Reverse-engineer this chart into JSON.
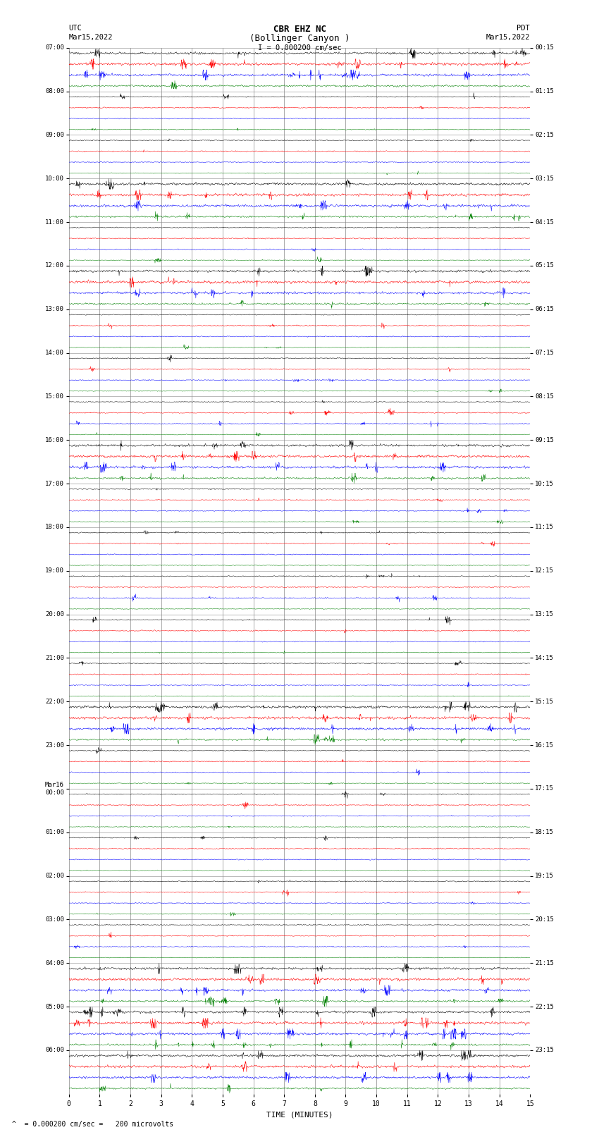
{
  "title_line1": "CBR EHZ NC",
  "title_line2": "(Bollinger Canyon )",
  "scale_label": "I = 0.000200 cm/sec",
  "left_header_line1": "UTC",
  "left_header_line2": "Mar15,2022",
  "right_header_line1": "PDT",
  "right_header_line2": "Mar15,2022",
  "footer_note": "= 0.000200 cm/sec =   200 microvolts",
  "xlabel": "TIME (MINUTES)",
  "bg_color": "#ffffff",
  "trace_colors": [
    "black",
    "red",
    "blue",
    "green"
  ],
  "n_hour_rows": 24,
  "left_labels_utc": [
    "07:00",
    "08:00",
    "09:00",
    "10:00",
    "11:00",
    "12:00",
    "13:00",
    "14:00",
    "15:00",
    "16:00",
    "17:00",
    "18:00",
    "19:00",
    "20:00",
    "21:00",
    "22:00",
    "23:00",
    "Mar16\n00:00",
    "01:00",
    "02:00",
    "03:00",
    "04:00",
    "05:00",
    "06:00"
  ],
  "right_labels_pdt": [
    "00:15",
    "01:15",
    "02:15",
    "03:15",
    "04:15",
    "05:15",
    "06:15",
    "07:15",
    "08:15",
    "09:15",
    "10:15",
    "11:15",
    "12:15",
    "13:15",
    "14:15",
    "15:15",
    "16:15",
    "17:15",
    "18:15",
    "19:15",
    "20:15",
    "21:15",
    "22:15",
    "23:15"
  ],
  "x_ticks": [
    0,
    1,
    2,
    3,
    4,
    5,
    6,
    7,
    8,
    9,
    10,
    11,
    12,
    13,
    14,
    15
  ],
  "grid_color": "#888888",
  "seed": 12345
}
